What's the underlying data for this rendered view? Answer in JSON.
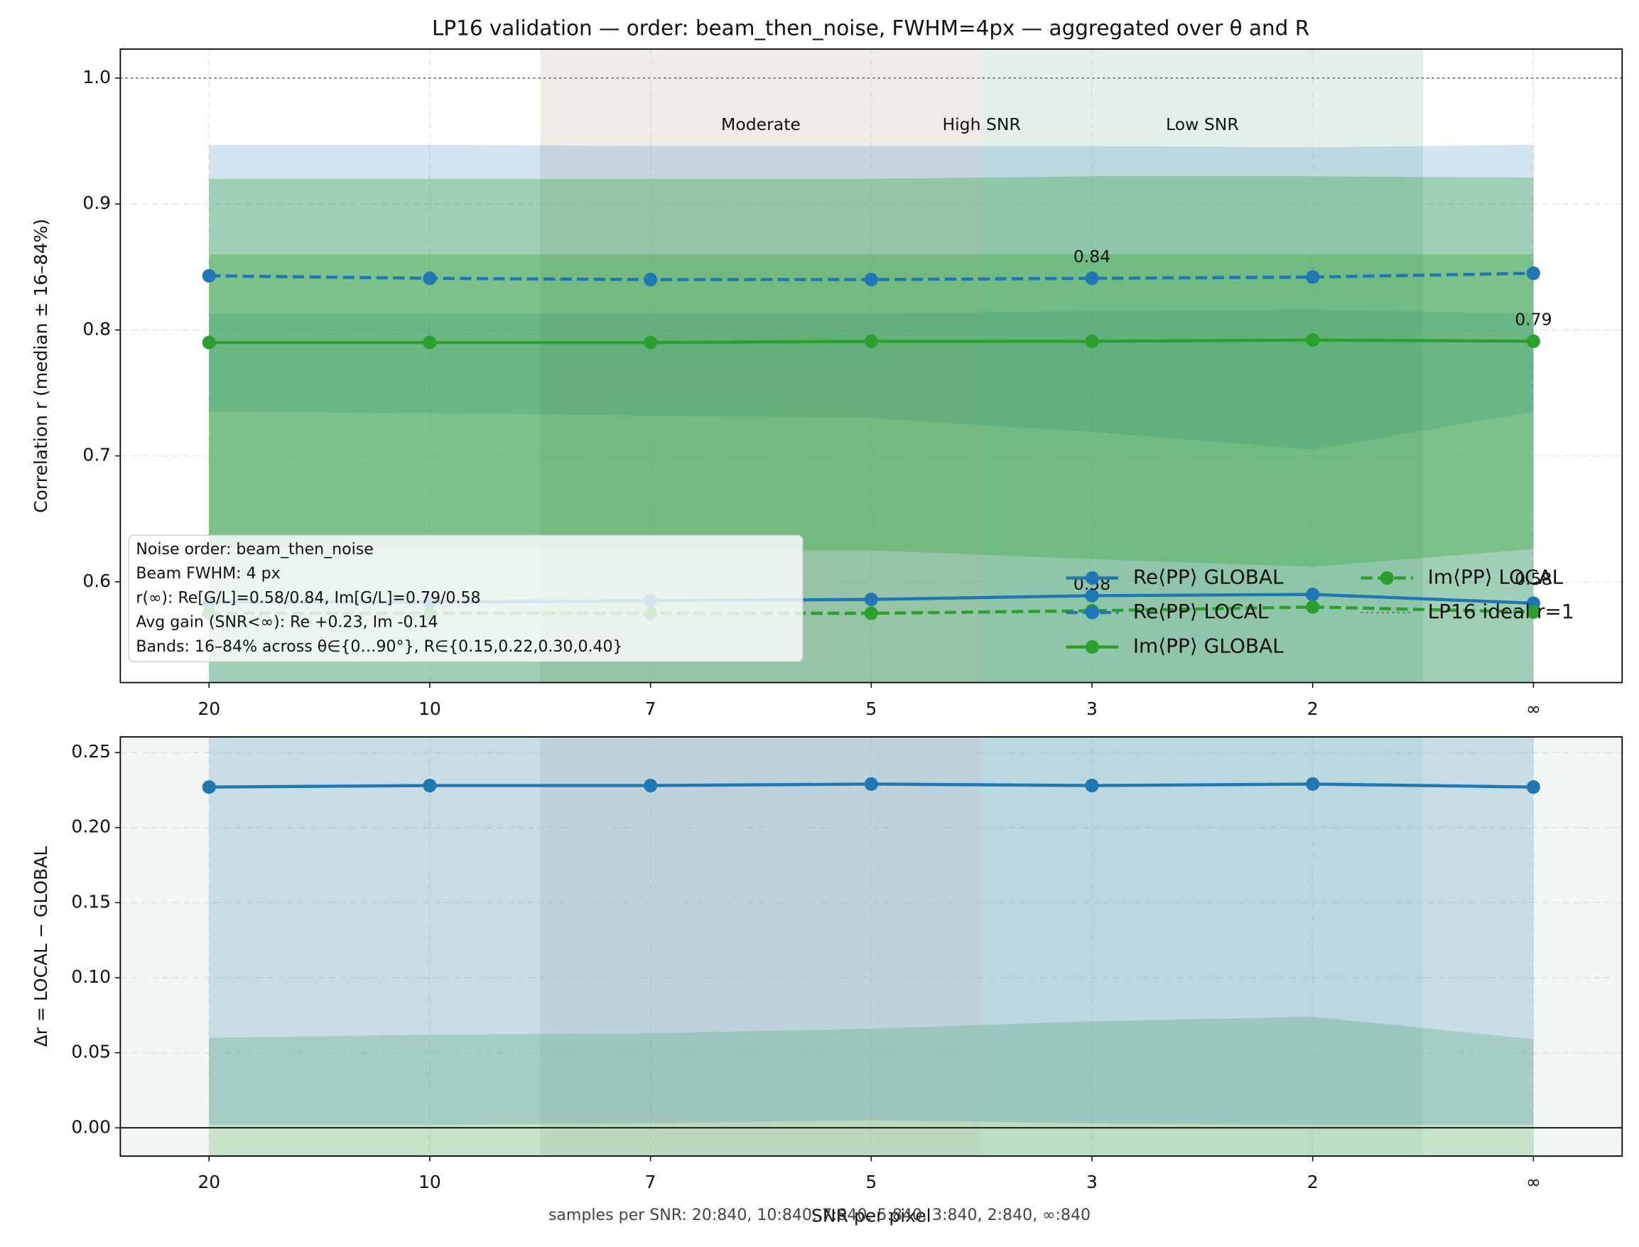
{
  "chart_data": [
    {
      "type": "line",
      "title": "LP16 validation — order: beam_then_noise, FWHM=4px — aggregated over θ and R",
      "ylabel": "Correlation r (median ± 16–84%)",
      "categories": [
        "20",
        "10",
        "7",
        "5",
        "3",
        "2",
        "∞"
      ],
      "ylim": [
        0.52,
        1.023
      ],
      "yticks": [
        0.6,
        0.7,
        0.8,
        0.9,
        {
          "value": 1,
          "label": "1.0"
        }
      ],
      "grid": true,
      "spans": [
        {
          "start": 1.5,
          "end": 3.5,
          "color": "#efece8"
        },
        {
          "start": 3.5,
          "end": 5.5,
          "color": "#e3efeb"
        }
      ],
      "region_labels": [
        "Moderate",
        "High SNR",
        "Low SNR"
      ],
      "reference_line": {
        "value": 1,
        "name": "LP16 ideal r=1",
        "color": "#777777"
      },
      "series": [
        {
          "name": "Re⟨PP⟩ GLOBAL",
          "color": "#1f77b4",
          "dashed": false,
          "values": [
            0.584,
            0.584,
            0.585,
            0.586,
            0.589,
            0.59,
            0.583
          ],
          "band_low": [
            0.45,
            0.45,
            0.45,
            0.45,
            0.45,
            0.45,
            0.45
          ],
          "band_high": [
            0.813,
            0.813,
            0.813,
            0.813,
            0.815,
            0.816,
            0.813
          ]
        },
        {
          "name": "Re⟨PP⟩ LOCAL",
          "color": "#1f77b4",
          "dashed": true,
          "values": [
            0.843,
            0.841,
            0.84,
            0.84,
            0.841,
            0.842,
            0.845
          ],
          "band_low": [
            0.735,
            0.734,
            0.732,
            0.73,
            0.719,
            0.705,
            0.735
          ],
          "band_high": [
            0.947,
            0.947,
            0.946,
            0.946,
            0.946,
            0.945,
            0.947
          ]
        },
        {
          "name": "Im⟨PP⟩ GLOBAL",
          "color": "#2ca02c",
          "dashed": false,
          "values": [
            0.79,
            0.79,
            0.79,
            0.791,
            0.791,
            0.792,
            0.791
          ],
          "band_low": [
            0.627,
            0.626,
            0.625,
            0.625,
            0.618,
            0.612,
            0.626
          ],
          "band_high": [
            0.92,
            0.92,
            0.92,
            0.92,
            0.922,
            0.922,
            0.921
          ]
        },
        {
          "name": "Im⟨PP⟩ LOCAL",
          "color": "#2ca02c",
          "dashed": true,
          "values": [
            0.575,
            0.575,
            0.575,
            0.575,
            0.577,
            0.58,
            0.576
          ],
          "band_low": [
            0.45,
            0.45,
            0.45,
            0.45,
            0.45,
            0.45,
            0.45
          ],
          "band_high": [
            0.86,
            0.86,
            0.86,
            0.86,
            0.86,
            0.86,
            0.86
          ]
        }
      ],
      "annotations": [
        "0.84",
        "0.79",
        "0.58",
        "0.58"
      ],
      "textbox": [
        "Noise order: beam_then_noise",
        "Beam FWHM: 4 px",
        "r(∞): Re[G/L]=0.58/0.84, Im[G/L]=0.79/0.58",
        "Avg gain (SNR<∞): Re +0.23, Im -0.14",
        "Bands: 16–84% across θ∈{0…90°}, R∈{0.15,0.22,0.30,0.40}"
      ],
      "legend": "lower right"
    },
    {
      "type": "line",
      "ylabel": "Δr = LOCAL − GLOBAL",
      "xlabel": "SNR per pixel",
      "footnote": "samples per SNR: 20:840, 10:840, 7:840, 5:840, 3:840, 2:840, ∞:840",
      "categories": [
        "20",
        "10",
        "7",
        "5",
        "3",
        "2",
        "∞"
      ],
      "ylim": [
        -0.0188,
        0.2604
      ],
      "yticks": [
        {
          "value": 0,
          "label": "0.00"
        },
        0.05,
        {
          "value": 0.1,
          "label": "0.10"
        },
        0.15,
        {
          "value": 0.2,
          "label": "0.20"
        },
        0.25
      ],
      "grid": true,
      "background": "#f2f6f2",
      "spans": [
        {
          "start": 1.5,
          "end": 3.5,
          "color": "#e6e9e6"
        },
        {
          "start": 3.5,
          "end": 5.5,
          "color": "#e3efeb"
        }
      ],
      "hline": 0,
      "bands": [
        {
          "color": "#2ca02c",
          "low": [
            -0.1,
            -0.1,
            -0.1,
            -0.1,
            -0.1,
            -0.1,
            -0.1
          ],
          "high": [
            0.06,
            0.062,
            0.063,
            0.066,
            0.071,
            0.074,
            0.059
          ]
        }
      ],
      "series": [
        {
          "color": "#1f77b4",
          "dashed": false,
          "values": [
            0.227,
            0.228,
            0.228,
            0.229,
            0.228,
            0.229,
            0.227
          ],
          "band_low": [
            0.002,
            0.002,
            0.003,
            0.005,
            0.003,
            0.002,
            0.002
          ],
          "band_high": [
            0.3,
            0.3,
            0.3,
            0.3,
            0.3,
            0.3,
            0.3
          ]
        }
      ]
    }
  ]
}
